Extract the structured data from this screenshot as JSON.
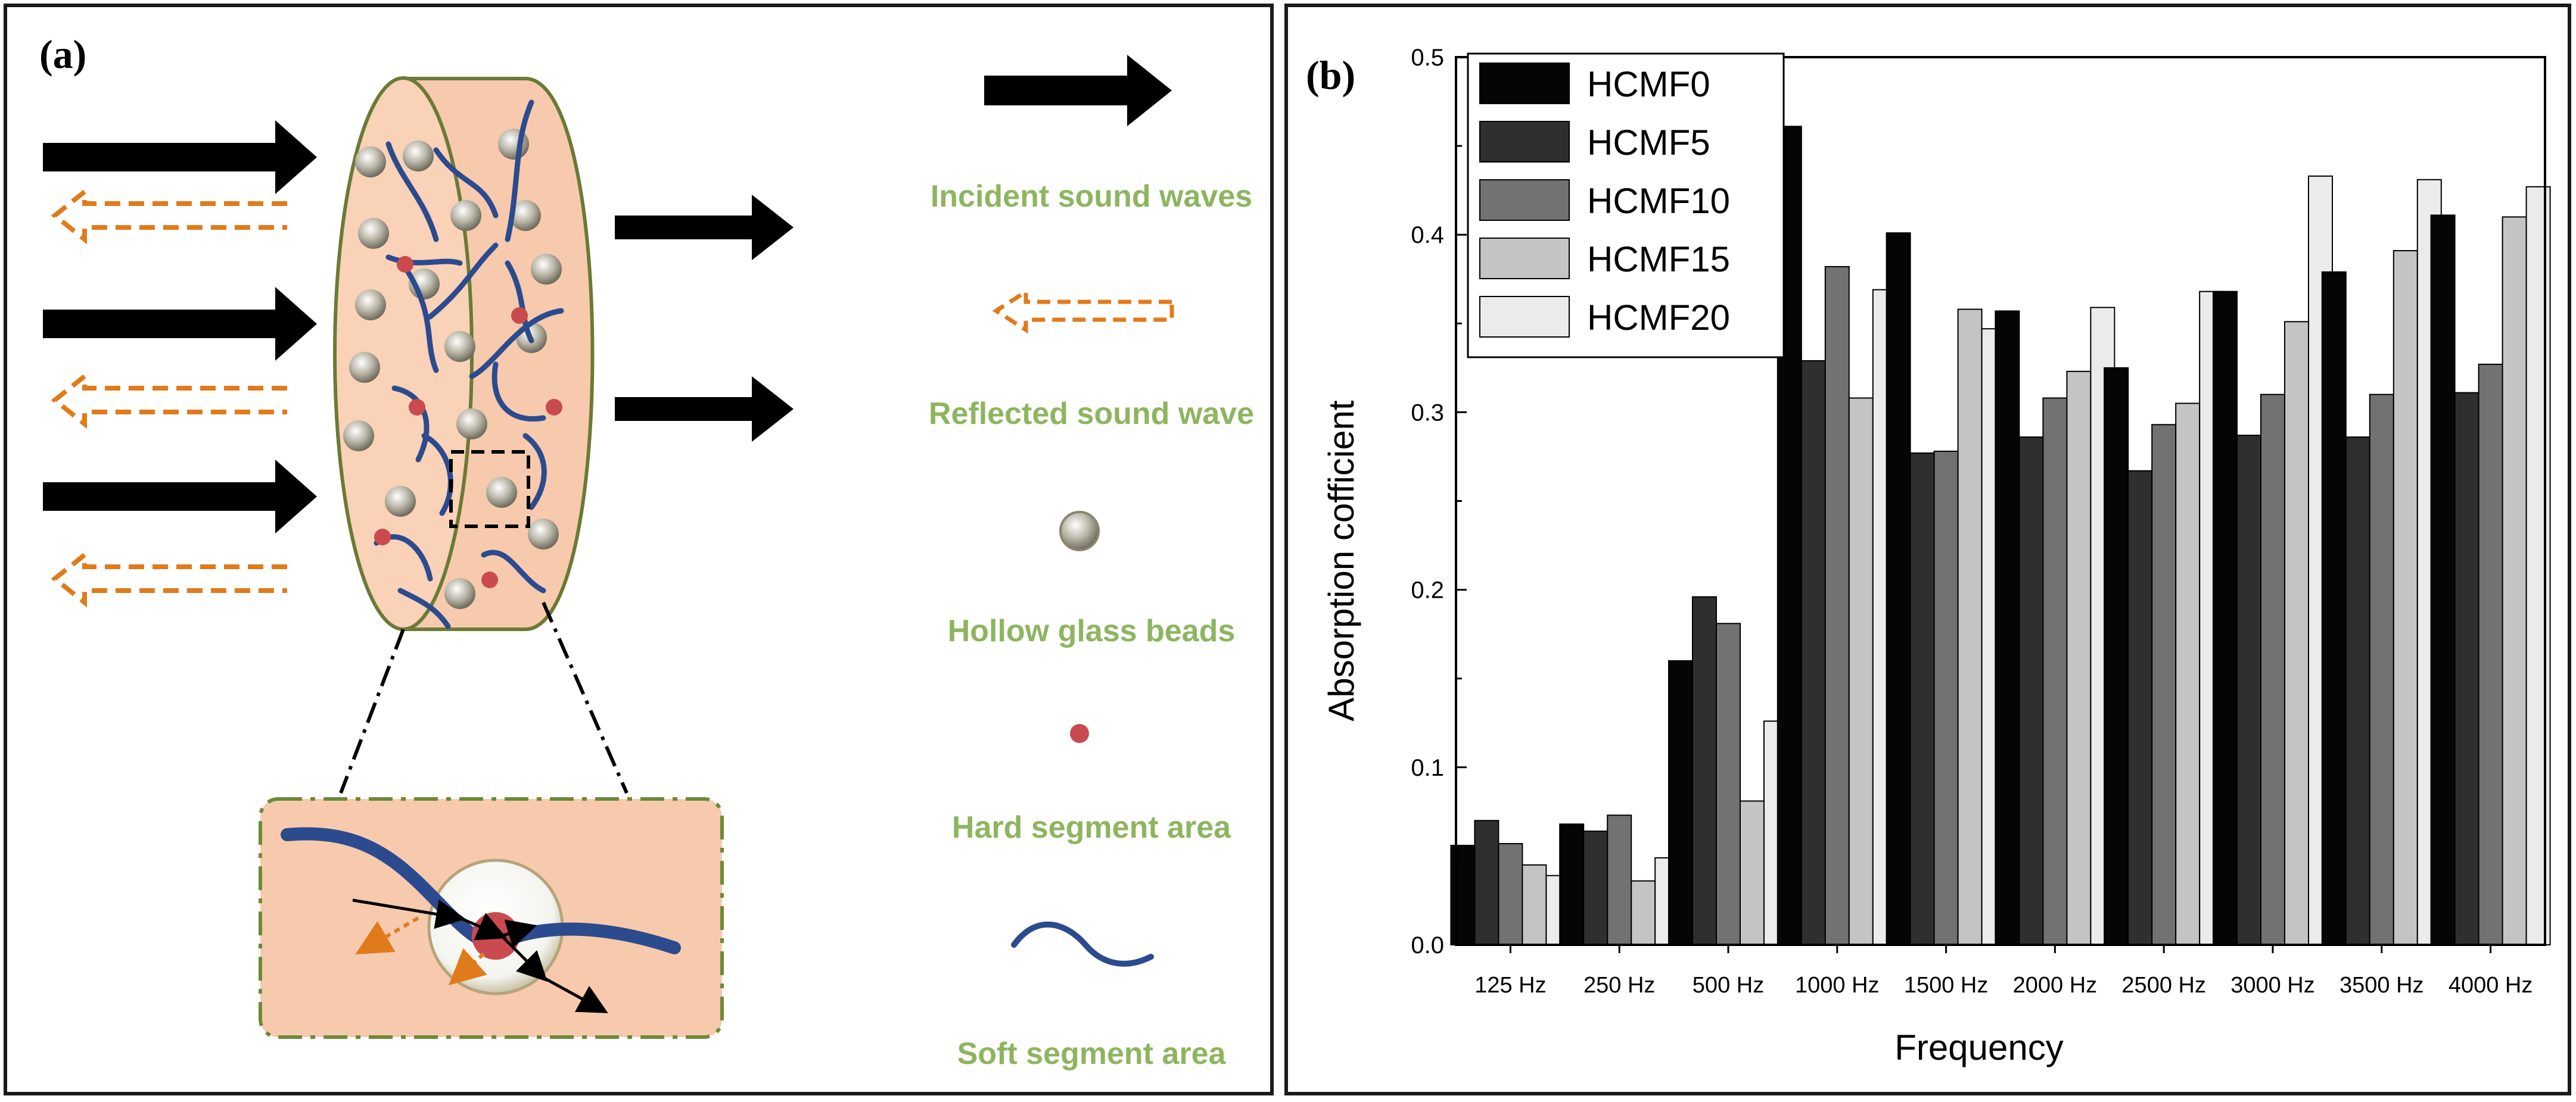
{
  "panel_a": {
    "label": "(a)",
    "legend": {
      "incident": "Incident sound waves",
      "reflected": "Reflected sound wave",
      "beads": "Hollow glass beads",
      "hard": "Hard segment area",
      "soft": "Soft segment area"
    }
  },
  "panel_b": {
    "label": "(b)"
  },
  "chart_data": {
    "type": "bar",
    "title": "",
    "xlabel": "Frequency",
    "ylabel": "Absorption cofficient",
    "ylim": [
      0,
      0.5
    ],
    "yticks": [
      "0.0",
      "0.1",
      "0.2",
      "0.3",
      "0.4",
      "0.5"
    ],
    "legend_position": "top-left",
    "grid": false,
    "categories": [
      "125 Hz",
      "250 Hz",
      "500 Hz",
      "1000 Hz",
      "1500 Hz",
      "2000 Hz",
      "2500 Hz",
      "3000 Hz",
      "3500 Hz",
      "4000 Hz"
    ],
    "series": [
      {
        "name": "HCMF0",
        "color": "#050505",
        "values": [
          0.056,
          0.068,
          0.16,
          0.461,
          0.401,
          0.357,
          0.325,
          0.368,
          0.379,
          0.411
        ]
      },
      {
        "name": "HCMF5",
        "color": "#2f2f2f",
        "values": [
          0.07,
          0.064,
          0.196,
          0.329,
          0.277,
          0.286,
          0.267,
          0.287,
          0.286,
          0.311
        ]
      },
      {
        "name": "HCMF10",
        "color": "#727272",
        "values": [
          0.057,
          0.073,
          0.181,
          0.382,
          0.278,
          0.308,
          0.293,
          0.31,
          0.31,
          0.327
        ]
      },
      {
        "name": "HCMF15",
        "color": "#c4c4c4",
        "values": [
          0.045,
          0.036,
          0.081,
          0.308,
          0.358,
          0.323,
          0.305,
          0.351,
          0.391,
          0.41
        ]
      },
      {
        "name": "HCMF20",
        "color": "#ebebeb",
        "values": [
          0.039,
          0.049,
          0.126,
          0.369,
          0.347,
          0.359,
          0.368,
          0.433,
          0.431,
          0.427
        ]
      }
    ]
  }
}
